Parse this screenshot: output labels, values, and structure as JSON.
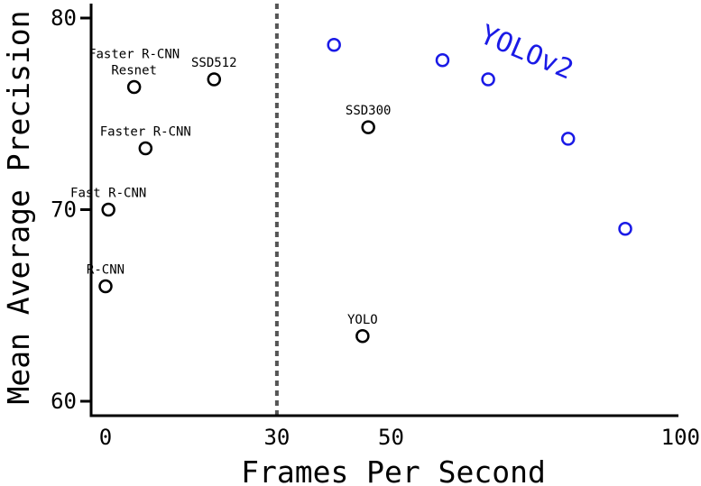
{
  "chart_data": {
    "type": "scatter",
    "title": "",
    "xlabel": "Frames Per Second",
    "ylabel": "Mean Average Precision",
    "xlim": [
      -2,
      100
    ],
    "ylim": [
      59.5,
      81
    ],
    "grid": false,
    "x_ticks": [
      0,
      30,
      50,
      100
    ],
    "x_tick_labels": [
      "0",
      "30",
      "50",
      "100"
    ],
    "y_ticks": [
      60,
      70,
      80
    ],
    "y_tick_labels": [
      "60",
      "70",
      "80"
    ],
    "reference_line": {
      "x": 30,
      "style": "dashed"
    },
    "colors": {
      "other": "#000000",
      "yolov2": "#1a1ae6",
      "reference_line": "#555555"
    },
    "series": [
      {
        "name": "",
        "color": "#000000",
        "points": [
          {
            "x": 0,
            "y": 66,
            "label": [
              "R-CNN"
            ]
          },
          {
            "x": 0.5,
            "y": 70,
            "label": [
              "Fast R-CNN"
            ]
          },
          {
            "x": 7,
            "y": 73.2,
            "label": [
              "Faster R-CNN"
            ]
          },
          {
            "x": 5,
            "y": 76.4,
            "label": [
              "Faster R-CNN",
              "Resnet"
            ]
          },
          {
            "x": 19,
            "y": 76.8,
            "label": [
              "SSD512"
            ]
          },
          {
            "x": 46,
            "y": 74.3,
            "label": [
              "SSD300"
            ]
          },
          {
            "x": 45,
            "y": 63.4,
            "label": [
              "YOLO"
            ]
          }
        ]
      },
      {
        "name": "YOLOv2",
        "color": "#1a1ae6",
        "points": [
          {
            "x": 40,
            "y": 78.6
          },
          {
            "x": 59,
            "y": 77.8
          },
          {
            "x": 67,
            "y": 76.8
          },
          {
            "x": 81,
            "y": 73.7
          },
          {
            "x": 91,
            "y": 69.0
          }
        ]
      }
    ]
  }
}
